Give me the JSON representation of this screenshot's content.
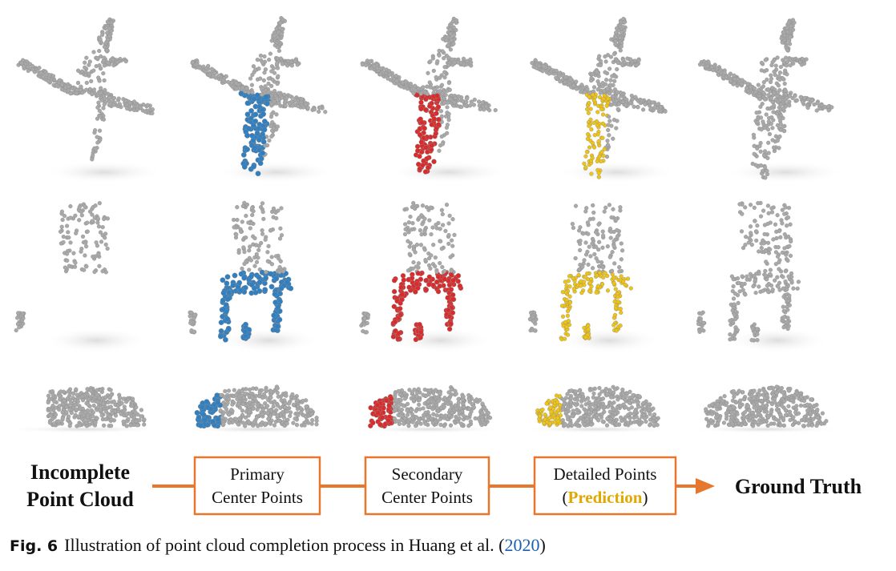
{
  "figure": {
    "stages": [
      {
        "id": "incomplete",
        "highlight": null
      },
      {
        "id": "primary",
        "highlight": "#2f7fc1"
      },
      {
        "id": "secondary",
        "highlight": "#d92b2b"
      },
      {
        "id": "detailed",
        "highlight": "#f1c40f"
      },
      {
        "id": "ground_truth",
        "highlight": null
      }
    ],
    "objects": [
      "airplane-point-cloud",
      "chair-point-cloud",
      "car-point-cloud"
    ],
    "colors": {
      "point_gray": "#a9a9a9",
      "arrow": "#e8772e",
      "box_border": "#e8772e",
      "prediction": "#e0a800"
    },
    "pipeline": {
      "start_label_line1": "Incomplete",
      "start_label_line2": "Point Cloud",
      "box1_line1": "Primary",
      "box1_line2": "Center Points",
      "box2_line1": "Secondary",
      "box2_line2": "Center Points",
      "box3_line1": "Detailed Points",
      "box3_line2_open": "(",
      "box3_line2_highlight": "Prediction",
      "box3_line2_close": ")",
      "end_label": "Ground Truth"
    }
  },
  "caption": {
    "label": "Fig. 6",
    "text_before": "Illustration of point cloud completion process in Huang et al. (",
    "year": "2020",
    "text_after": ")"
  }
}
